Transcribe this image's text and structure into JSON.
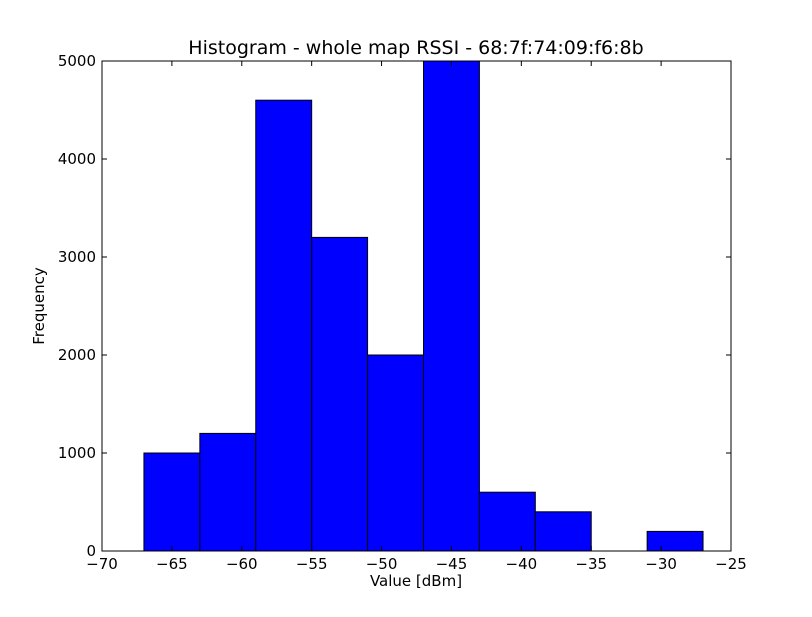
{
  "chart_data": {
    "type": "bar",
    "title": "Histogram - whole map RSSI - 68:7f:74:09:f6:8b",
    "xlabel": "Value [dBm]",
    "ylabel": "Frequency",
    "xlim": [
      -70,
      -25
    ],
    "ylim": [
      0,
      5000
    ],
    "xticks": [
      -70,
      -65,
      -60,
      -55,
      -50,
      -45,
      -40,
      -35,
      -30,
      -25
    ],
    "yticks": [
      0,
      1000,
      2000,
      3000,
      4000,
      5000
    ],
    "xtick_labels": [
      "−70",
      "−65",
      "−60",
      "−55",
      "−50",
      "−45",
      "−40",
      "−35",
      "−30",
      "−25"
    ],
    "ytick_labels": [
      "0",
      "1000",
      "2000",
      "3000",
      "4000",
      "5000"
    ],
    "bin_edges": [
      -67,
      -63,
      -59,
      -55,
      -51,
      -47,
      -43,
      -39,
      -35,
      -31,
      -27
    ],
    "values": [
      1000,
      1200,
      4600,
      3200,
      2000,
      5000,
      600,
      400,
      0,
      200
    ],
    "bar_color": "#0000ff",
    "edge_color": "#000000",
    "grid": false
  }
}
